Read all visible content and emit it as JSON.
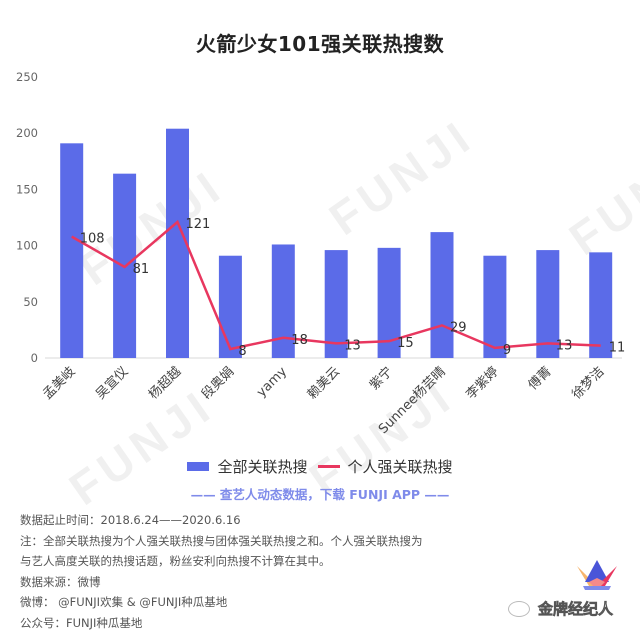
{
  "title": "火箭少女101强关联热搜数",
  "watermark_text": "FUNJI",
  "chart_data": {
    "type": "bar",
    "title": "火箭少女101强关联热搜数",
    "xlabel": "",
    "ylabel": "",
    "ylim": [
      0,
      250
    ],
    "yticks": [
      0,
      50,
      100,
      150,
      200,
      250
    ],
    "grid": false,
    "legend_position": "bottom",
    "categories": [
      "孟美岐",
      "吴宣仪",
      "杨超越",
      "段奥娟",
      "yamy",
      "赖美云",
      "紫宁",
      "Sunnee杨芸晴",
      "李紫婷",
      "傅菁",
      "徐梦洁"
    ],
    "series": [
      {
        "name": "全部关联热搜",
        "type": "bar",
        "color": "#5b6be8",
        "values": [
          191,
          164,
          204,
          91,
          101,
          96,
          98,
          112,
          91,
          96,
          94
        ]
      },
      {
        "name": "个人强关联热搜",
        "type": "line",
        "color": "#e8375f",
        "values": [
          108,
          81,
          121,
          8,
          18,
          13,
          15,
          29,
          9,
          13,
          11
        ],
        "data_labels": true
      }
    ]
  },
  "legend": {
    "bar_label": "全部关联热搜",
    "line_label": "个人强关联热搜"
  },
  "promo": "—— 查艺人动态数据，下载 FUNJI APP ——",
  "notes": [
    "数据起止时间：2018.6.24——2020.6.16",
    "注：全部关联热搜为个人强关联热搜与团体强关联热搜之和。个人强关联热搜为",
    "与艺人高度关联的热搜话题，粉丝安利向热搜不计算在其中。",
    "数据来源：微博",
    "微博： @FUNJI欢集 & @FUNJI种瓜基地",
    "公众号：FUNJI种瓜基地"
  ],
  "brand": "金牌经纪人"
}
